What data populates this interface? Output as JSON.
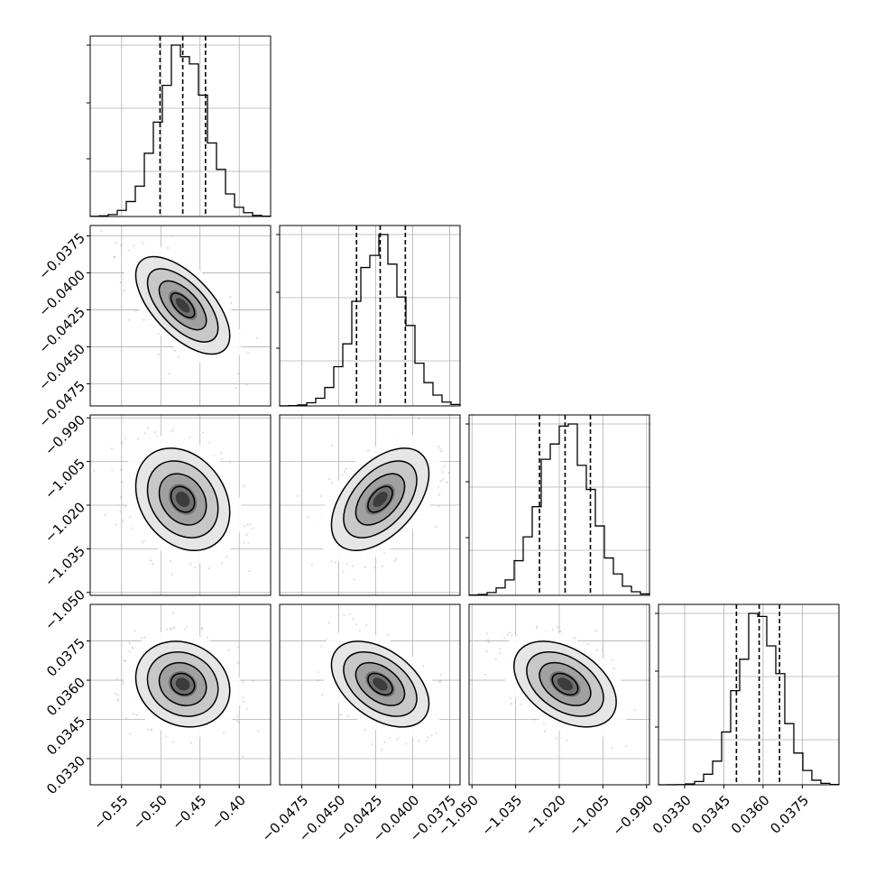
{
  "chart_data": {
    "type": "corner",
    "grid": true,
    "quantile_lines": "dashed",
    "parameters": [
      {
        "id": "p0",
        "range": [
          -0.59,
          -0.36
        ],
        "median": -0.472,
        "q16": -0.501,
        "q84": -0.443,
        "sigma": 0.03,
        "ticks": [
          -0.55,
          -0.5,
          -0.45,
          -0.4
        ],
        "tick_labels": [
          "−0.55",
          "−0.50",
          "−0.45",
          "−0.40"
        ]
      },
      {
        "id": "p1",
        "range": [
          -0.049,
          -0.0368
        ],
        "median": -0.0422,
        "q16": -0.0438,
        "q84": -0.0405,
        "sigma": 0.00165,
        "ticks": [
          -0.0475,
          -0.045,
          -0.0425,
          -0.04,
          -0.0375
        ],
        "tick_labels": [
          "−0.0475",
          "−0.0450",
          "−0.0425",
          "−0.0400",
          "−0.0375"
        ]
      },
      {
        "id": "p2",
        "range": [
          -1.051,
          -0.989
        ],
        "median": -1.018,
        "q16": -1.0268,
        "q84": -1.0093,
        "sigma": 0.0088,
        "ticks": [
          -1.05,
          -1.035,
          -1.02,
          -1.005,
          -0.99
        ],
        "tick_labels": [
          "−1.050",
          "−1.035",
          "−1.020",
          "−1.005",
          "−0.990"
        ]
      },
      {
        "id": "p3",
        "range": [
          0.032,
          0.0389
        ],
        "median": 0.03585,
        "q16": 0.03498,
        "q84": 0.03663,
        "sigma": 0.00082,
        "ticks": [
          0.033,
          0.0345,
          0.036,
          0.0375
        ],
        "tick_labels": [
          "0.0330",
          "0.0345",
          "0.0360",
          "0.0375"
        ]
      }
    ],
    "correlations": [
      {
        "row": 1,
        "col": 0,
        "rho": -0.62
      },
      {
        "row": 2,
        "col": 0,
        "rho": -0.25
      },
      {
        "row": 2,
        "col": 1,
        "rho": 0.5
      },
      {
        "row": 3,
        "col": 0,
        "rho": -0.15
      },
      {
        "row": 3,
        "col": 1,
        "rho": -0.45
      },
      {
        "row": 3,
        "col": 2,
        "rho": -0.42
      }
    ],
    "contour_levels": [
      0.118,
      0.393,
      0.675,
      0.864
    ],
    "n_samples": 900,
    "hist_bins": 20
  }
}
